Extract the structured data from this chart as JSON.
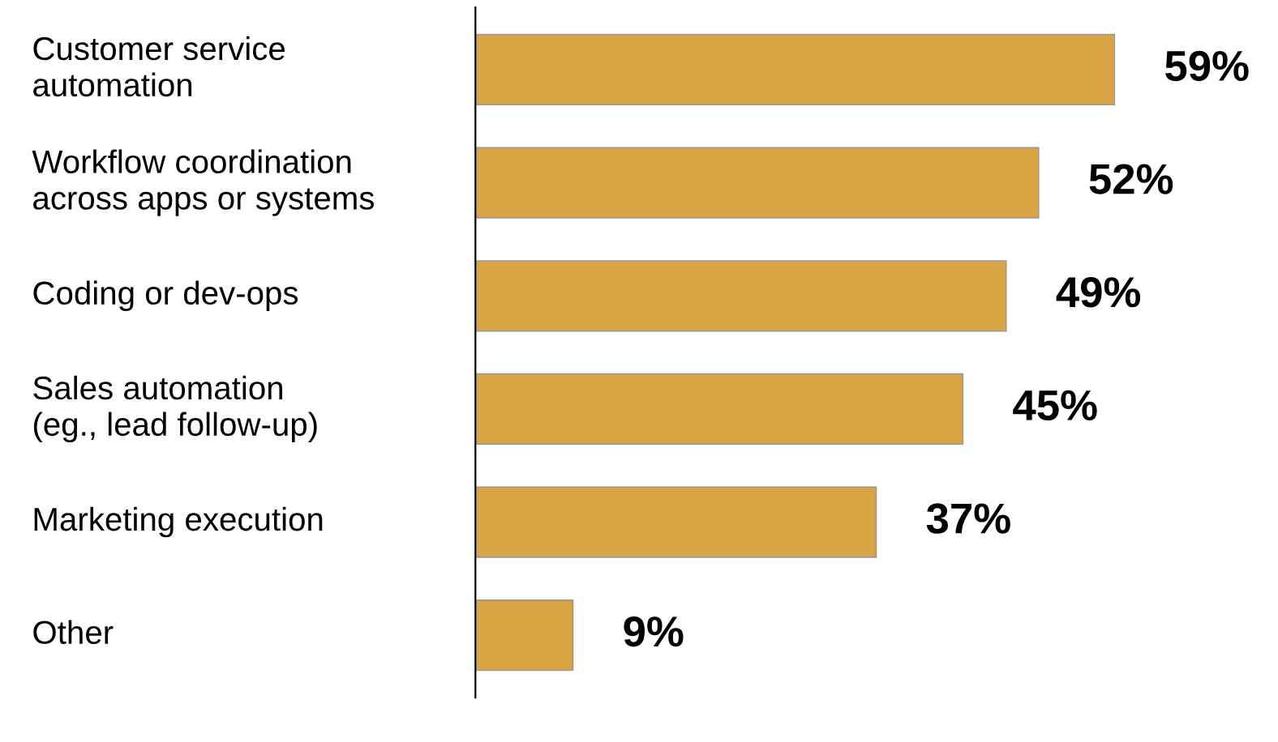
{
  "chart_data": {
    "type": "bar",
    "orientation": "horizontal",
    "categories": [
      "Customer service\nautomation",
      "Workflow coordination\nacross apps or systems",
      "Coding or dev-ops",
      "Sales automation\n(eg., lead follow-up)",
      "Marketing execution",
      "Other"
    ],
    "values": [
      59,
      52,
      49,
      45,
      37,
      9
    ],
    "color": "#d9a444",
    "data_labels": true,
    "value_labels": [
      "59%",
      "52%",
      "49%",
      "45%",
      "37%",
      "9%"
    ]
  }
}
